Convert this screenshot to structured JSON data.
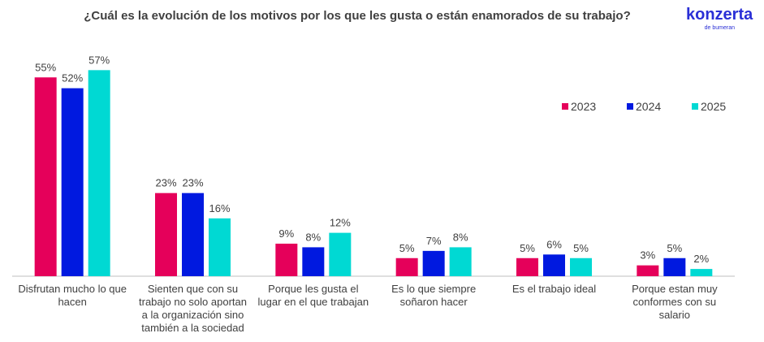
{
  "logo": {
    "name": "konzerta",
    "tagline": "de bumeran"
  },
  "chart_data": {
    "type": "bar",
    "title": "¿Cuál es la evolución de los motivos por los que les gusta o están enamorados de su trabajo?",
    "categories": [
      "Disfrutan mucho lo que hacen",
      "Sienten que con su trabajo no solo aportan a la organización sino también a la sociedad",
      "Porque les gusta el lugar en el que trabajan",
      "Es lo que siempre soñaron hacer",
      "Es el trabajo ideal",
      "Porque estan muy conformes con su salario"
    ],
    "series": [
      {
        "name": "2023",
        "color": "#e5005a",
        "values": [
          55,
          23,
          9,
          5,
          5,
          3
        ],
        "value_labels": [
          "55%",
          "23%",
          "9%",
          "5%",
          "5%",
          "3%"
        ]
      },
      {
        "name": "2024",
        "color": "#0019e0",
        "values": [
          52,
          23,
          8,
          7,
          6,
          5
        ],
        "value_labels": [
          "52%",
          "23%",
          "8%",
          "7%",
          "6%",
          "5%"
        ]
      },
      {
        "name": "2025",
        "color": "#00d9d3",
        "values": [
          57,
          16,
          12,
          8,
          5,
          2
        ],
        "value_labels": [
          "57%",
          "16%",
          "12%",
          "8%",
          "5%",
          "2%"
        ]
      }
    ],
    "ylim": [
      0,
      60
    ],
    "legend": "upper right"
  }
}
